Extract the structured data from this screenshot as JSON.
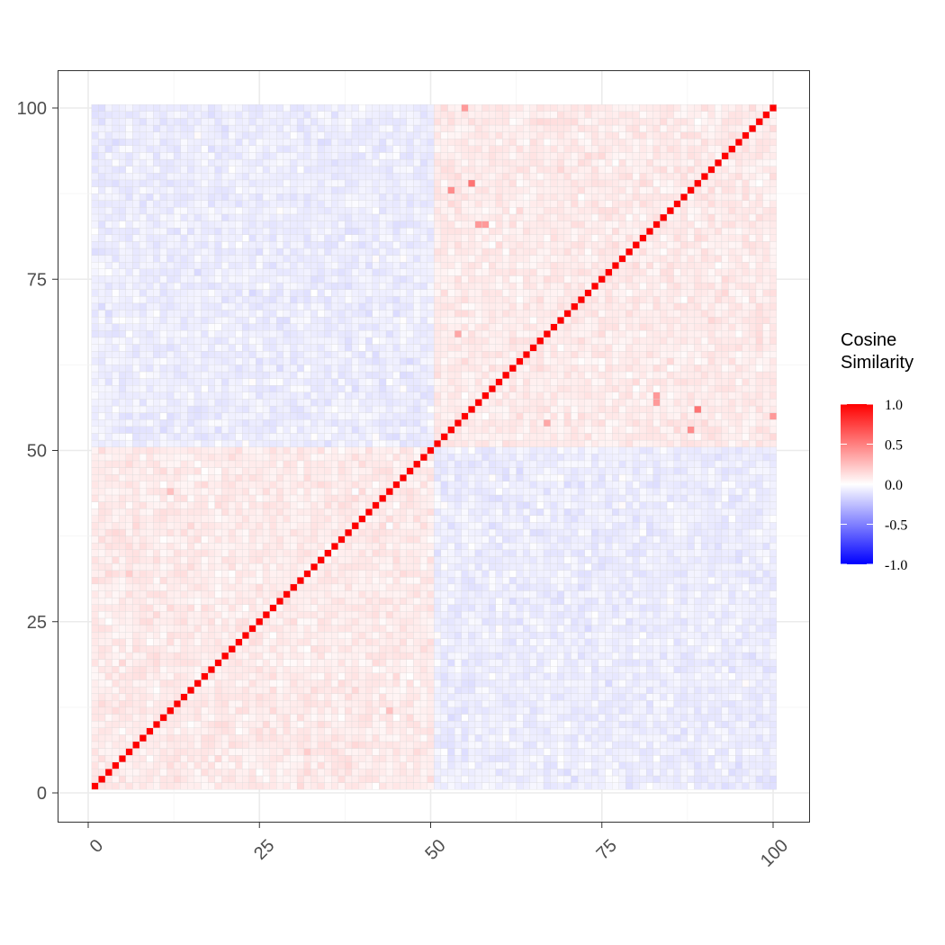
{
  "chart_data": {
    "type": "heatmap",
    "title": "",
    "xlabel": "",
    "ylabel": "",
    "xlim": [
      1,
      100
    ],
    "ylim": [
      1,
      100
    ],
    "x_ticks": [
      0,
      25,
      50,
      75,
      100
    ],
    "y_ticks": [
      0,
      25,
      50,
      75,
      100
    ],
    "x_tick_labels": [
      "0",
      "25",
      "50",
      "75",
      "100"
    ],
    "y_tick_labels": [
      "0",
      "25",
      "50",
      "75",
      "100"
    ],
    "grid": true,
    "n_rows": 100,
    "n_cols": 100,
    "diagonal_value": 1.0,
    "block_structure": {
      "within_group_mean": 0.08,
      "between_group_mean": -0.07,
      "noise_sd": 0.06,
      "groups": [
        [
          1,
          50
        ],
        [
          51,
          100
        ]
      ]
    },
    "notable_cells": [
      {
        "x": 55,
        "y": 100,
        "value": 0.35
      },
      {
        "x": 53,
        "y": 88,
        "value": 0.45
      },
      {
        "x": 89,
        "y": 56,
        "value": 0.55
      },
      {
        "x": 100,
        "y": 55,
        "value": 0.4
      },
      {
        "x": 83,
        "y": 58,
        "value": 0.4
      },
      {
        "x": 57,
        "y": 83,
        "value": 0.4
      },
      {
        "x": 54,
        "y": 67,
        "value": 0.35
      },
      {
        "x": 44,
        "y": 12,
        "value": 0.25
      },
      {
        "x": 6,
        "y": 32,
        "value": 0.2
      }
    ],
    "legend": {
      "title_lines": [
        "Cosine",
        "Similarity"
      ],
      "position": "right",
      "ticks": [
        1.0,
        0.5,
        0.0,
        -0.5,
        -1.0
      ],
      "tick_labels": [
        "1.0",
        "0.5",
        "0.0",
        "-0.5",
        "-1.0"
      ],
      "low_color": "#0000ff",
      "mid_color": "#ffffff",
      "high_color": "#ff0000"
    }
  }
}
